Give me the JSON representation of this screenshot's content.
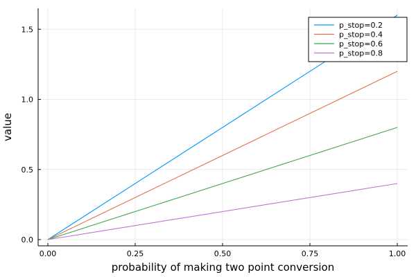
{
  "chart_data": {
    "type": "line",
    "title": "",
    "xlabel": "probability of making two point conversion",
    "ylabel": "value",
    "xlim": [
      0,
      1
    ],
    "ylim": [
      0,
      1.6
    ],
    "xticks": [
      "0.00",
      "0.25",
      "0.50",
      "0.75",
      "1.00"
    ],
    "xtick_values": [
      0,
      0.25,
      0.5,
      0.75,
      1.0
    ],
    "yticks": [
      "0.0",
      "0.5",
      "1.0",
      "1.5"
    ],
    "ytick_values": [
      0,
      0.5,
      1.0,
      1.5
    ],
    "grid": true,
    "legend_position": "top-right",
    "x": [
      0,
      1
    ],
    "series": [
      {
        "name": "p_stop=0.2",
        "color": "#009AFA",
        "values": [
          0,
          1.6
        ]
      },
      {
        "name": "p_stop=0.4",
        "color": "#E36F47",
        "values": [
          0,
          1.2
        ]
      },
      {
        "name": "p_stop=0.6",
        "color": "#3EA44E",
        "values": [
          0,
          0.8
        ]
      },
      {
        "name": "p_stop=0.8",
        "color": "#C371D2",
        "values": [
          0,
          0.4
        ]
      }
    ]
  }
}
